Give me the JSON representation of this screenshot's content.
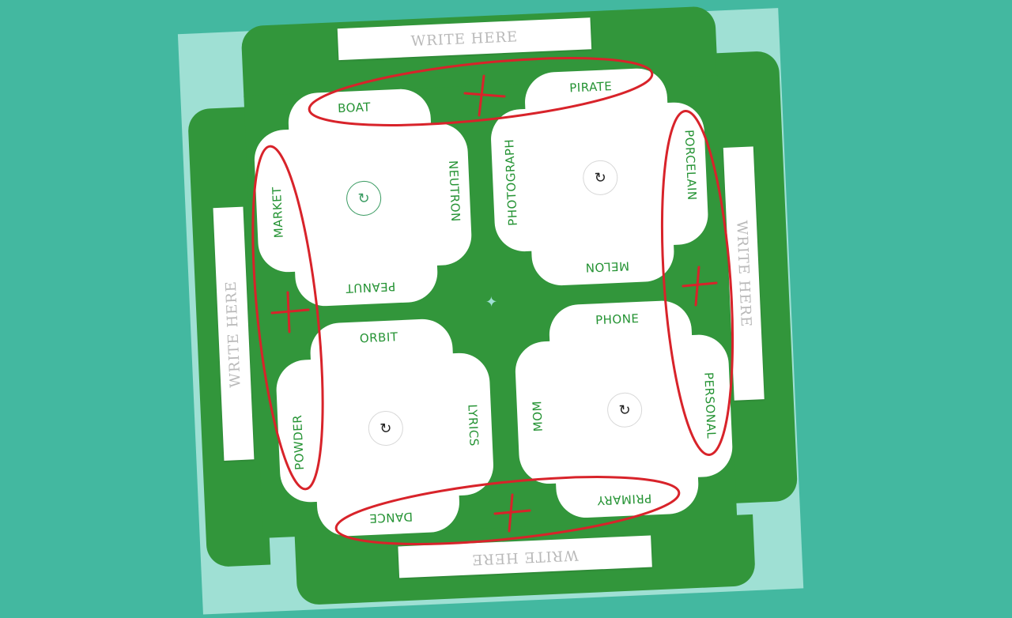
{
  "write_here": {
    "top": "WRITE HERE",
    "left": "WRITE HERE",
    "right": "WRITE HERE",
    "bottom": "WRITE HERE"
  },
  "cups": [
    {
      "top": "BOAT",
      "left": "MARKET",
      "right": "NEUTRON",
      "bottom": "PEANUT",
      "spinner": "↻"
    },
    {
      "top": "PIRATE",
      "left": "PHOTOGRAPH",
      "right": "PORCELAIN",
      "bottom": "MELON",
      "spinner": "↻"
    },
    {
      "top": "ORBIT",
      "left": "POWDER",
      "right": "LYRICS",
      "bottom": "DANCE",
      "spinner": "↻"
    },
    {
      "top": "PHONE",
      "left": "MOM",
      "right": "PERSONAL",
      "bottom": "PRIMARY",
      "spinner": "↻"
    }
  ],
  "center_marker": "✦",
  "colors": {
    "background": "#43b8a0",
    "paper": "#9fe0d4",
    "board_green": "#32963b",
    "label_green": "#259334",
    "annotation_red": "#d8232a"
  },
  "annotations": {
    "ellipse_count": 4,
    "cross_count": 4
  }
}
